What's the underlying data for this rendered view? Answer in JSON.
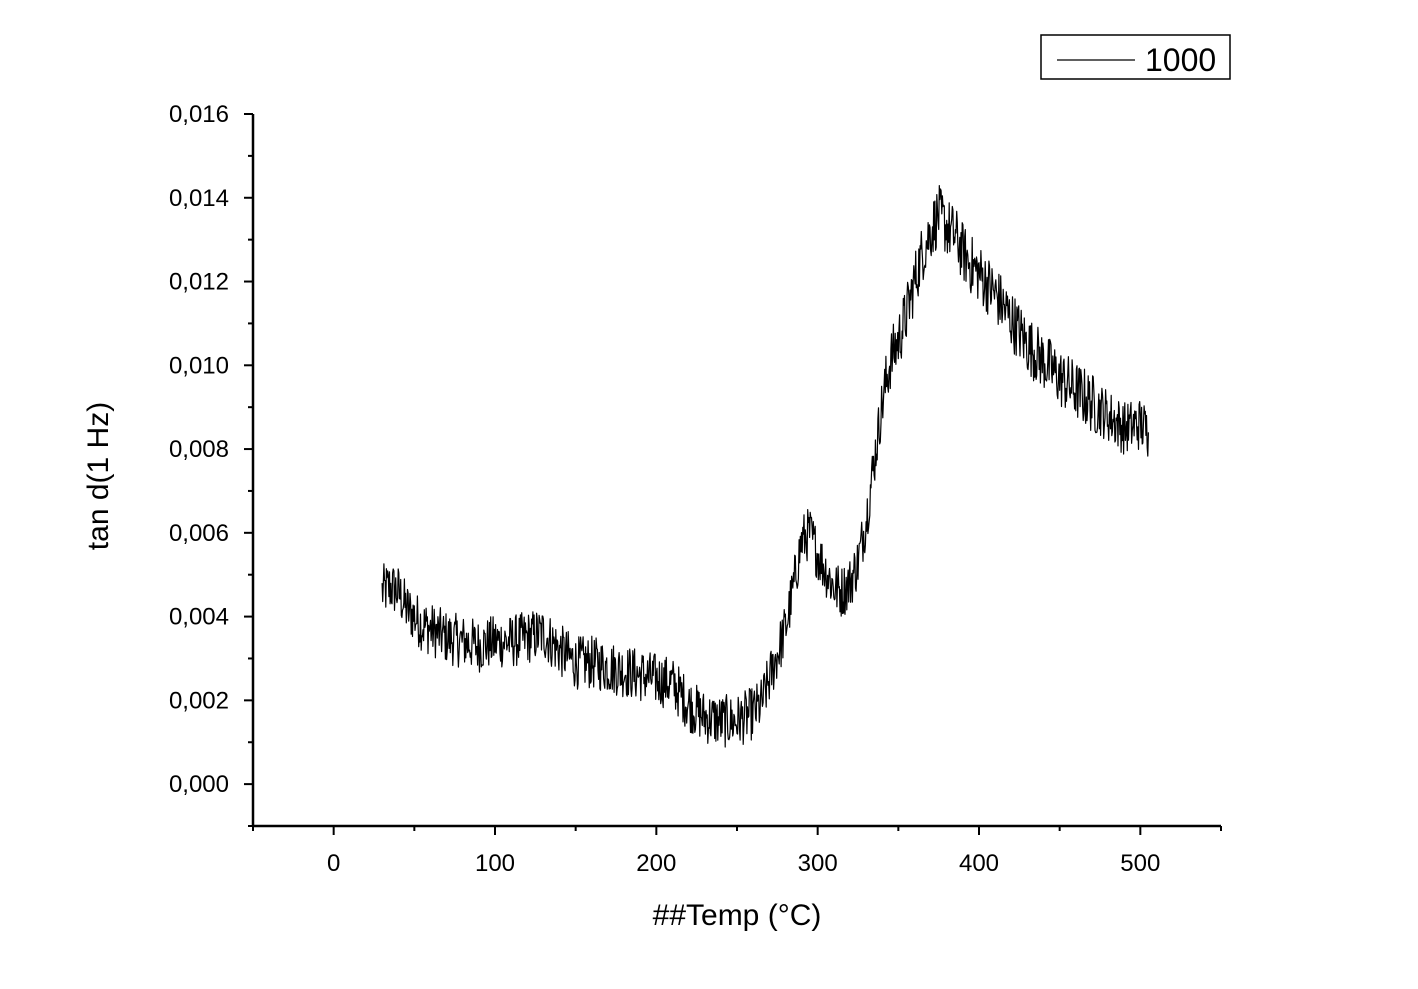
{
  "chart_data": {
    "type": "line",
    "xlabel": "##Temp (°C)",
    "ylabel": "tan d(1 Hz)",
    "xlim": [
      -50,
      550
    ],
    "ylim": [
      -0.001,
      0.016
    ],
    "xticks": [
      0,
      100,
      200,
      300,
      400,
      500
    ],
    "xtick_labels": [
      "0",
      "100",
      "200",
      "300",
      "400",
      "500"
    ],
    "yticks": [
      0.0,
      0.002,
      0.004,
      0.006,
      0.008,
      0.01,
      0.012,
      0.014,
      0.016
    ],
    "ytick_labels": [
      "0,000",
      "0,002",
      "0,004",
      "0,006",
      "0,008",
      "0,010",
      "0,012",
      "0,014",
      "0,016"
    ],
    "grid": false,
    "legend_position": "top-right",
    "series": [
      {
        "name": "1000",
        "color": "#000000",
        "x": [
          30,
          35,
          40,
          45,
          50,
          55,
          60,
          70,
          80,
          90,
          100,
          110,
          120,
          130,
          140,
          150,
          160,
          170,
          180,
          190,
          200,
          210,
          220,
          230,
          240,
          250,
          260,
          265,
          270,
          275,
          280,
          285,
          290,
          295,
          300,
          305,
          310,
          315,
          320,
          325,
          330,
          335,
          340,
          345,
          350,
          355,
          360,
          365,
          370,
          375,
          380,
          385,
          390,
          395,
          400,
          410,
          420,
          430,
          440,
          450,
          460,
          470,
          480,
          490,
          500,
          505
        ],
        "y": [
          0.0046,
          0.0047,
          0.0046,
          0.0042,
          0.004,
          0.0038,
          0.0037,
          0.0035,
          0.0034,
          0.0033,
          0.0034,
          0.0034,
          0.0035,
          0.0036,
          0.0032,
          0.0029,
          0.0029,
          0.0028,
          0.0027,
          0.0026,
          0.0025,
          0.0024,
          0.0019,
          0.0016,
          0.0015,
          0.0015,
          0.0017,
          0.0019,
          0.0025,
          0.0031,
          0.0037,
          0.0047,
          0.0058,
          0.006,
          0.0055,
          0.0051,
          0.0047,
          0.0046,
          0.0048,
          0.0053,
          0.0063,
          0.0077,
          0.0091,
          0.0101,
          0.0106,
          0.0112,
          0.012,
          0.0127,
          0.0132,
          0.0136,
          0.0133,
          0.0131,
          0.0127,
          0.0124,
          0.0122,
          0.0117,
          0.0111,
          0.0105,
          0.0101,
          0.0097,
          0.0094,
          0.0091,
          0.0088,
          0.0085,
          0.0086,
          0.0084
        ]
      }
    ]
  }
}
